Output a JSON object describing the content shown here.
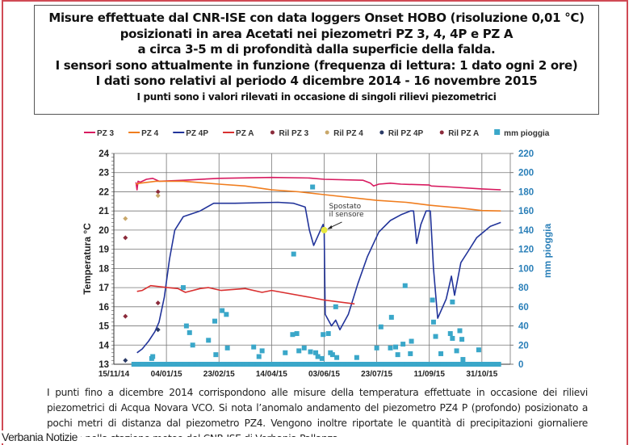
{
  "header": {
    "lines": [
      "Misure effettuate dal CNR-ISE con data loggers Onset HOBO (risoluzione 0,01 °C)",
      "posizionati in area Acetati nei piezometri PZ 3, 4, 4P e PZ A",
      "a circa 3-5 m di profondità dalla superficie della falda.",
      "I sensori sono attualmente in funzione (frequenza di lettura: 1 dato ogni 2 ore)",
      "I dati sono relativi al periodo 4 dicembre 2014 - 16 novembre 2015"
    ],
    "note": "I punti sono i valori rilevati in occasione di singoli rilievi piezometrici"
  },
  "footer": {
    "text": "I punti fino a dicembre 2014 corrispondono alle misure della temperatura effettuate in occasione dei rilievi piezometrici di Acqua Novara VCO. Si nota l’anomalo andamento del piezometro PZ4 P (profondo) posizionato a pochi metri di distanza dal piezometro PZ4. Vengono inoltre riportate le quantità di precipitazioni giornaliere rilevate nella stazione meteo del CNR-ISE di Verbania Pallanza"
  },
  "watermark": "Verbania Notizie",
  "chart_data": {
    "type": "line",
    "ylabel": "Temperatura °C",
    "y2label": "mm pioggia",
    "ylim": [
      13,
      24
    ],
    "y2lim": [
      0,
      220
    ],
    "yticks": [
      13,
      14,
      15,
      16,
      17,
      18,
      19,
      20,
      21,
      22,
      23,
      24
    ],
    "y2ticks": [
      0,
      20,
      40,
      60,
      80,
      100,
      120,
      140,
      160,
      180,
      200,
      220
    ],
    "xlim": [
      "2014-11-15",
      "2015-11-27"
    ],
    "xticks": [
      "15/11/14",
      "04/01/15",
      "23/02/15",
      "14/04/15",
      "03/06/15",
      "23/07/15",
      "11/09/15",
      "31/10/15"
    ],
    "grid": true,
    "legend_position": "top",
    "annotation": {
      "text": [
        "Spostato",
        "il sensore"
      ],
      "x": "2015-06-03",
      "y": 20.0,
      "color": "#e8e840"
    },
    "series": [
      {
        "name": "PZ 3",
        "kind": "line",
        "color": "#d81b60",
        "points": [
          [
            "2014-12-06",
            22.5
          ],
          [
            "2014-12-07",
            22.1
          ],
          [
            "2014-12-08",
            22.55
          ],
          [
            "2014-12-10",
            22.5
          ],
          [
            "2014-12-16",
            22.65
          ],
          [
            "2014-12-22",
            22.7
          ],
          [
            "2014-12-28",
            22.55
          ],
          [
            "2015-01-20",
            22.6
          ],
          [
            "2015-02-23",
            22.7
          ],
          [
            "2015-04-14",
            22.75
          ],
          [
            "2015-05-20",
            22.72
          ],
          [
            "2015-06-03",
            22.65
          ],
          [
            "2015-07-10",
            22.6
          ],
          [
            "2015-07-17",
            22.45
          ],
          [
            "2015-07-20",
            22.3
          ],
          [
            "2015-07-25",
            22.4
          ],
          [
            "2015-08-05",
            22.45
          ],
          [
            "2015-08-15",
            22.4
          ],
          [
            "2015-09-11",
            22.35
          ],
          [
            "2015-09-13",
            22.3
          ],
          [
            "2015-10-01",
            22.25
          ],
          [
            "2015-10-31",
            22.15
          ],
          [
            "2015-11-18",
            22.1
          ]
        ]
      },
      {
        "name": "PZ 4",
        "kind": "line",
        "color": "#f07d1e",
        "points": [
          [
            "2014-12-06",
            22.4
          ],
          [
            "2014-12-10",
            22.45
          ],
          [
            "2014-12-25",
            22.55
          ],
          [
            "2015-01-20",
            22.55
          ],
          [
            "2015-02-23",
            22.4
          ],
          [
            "2015-03-20",
            22.3
          ],
          [
            "2015-04-14",
            22.1
          ],
          [
            "2015-05-10",
            22.0
          ],
          [
            "2015-06-03",
            21.85
          ],
          [
            "2015-07-23",
            21.55
          ],
          [
            "2015-08-20",
            21.45
          ],
          [
            "2015-09-11",
            21.3
          ],
          [
            "2015-10-10",
            21.15
          ],
          [
            "2015-10-31",
            21.02
          ],
          [
            "2015-11-18",
            21.0
          ]
        ]
      },
      {
        "name": "PZ 4P",
        "kind": "line",
        "color": "#22349a",
        "points": [
          [
            "2014-12-07",
            13.6
          ],
          [
            "2014-12-12",
            13.8
          ],
          [
            "2014-12-18",
            14.2
          ],
          [
            "2014-12-24",
            14.7
          ],
          [
            "2014-12-28",
            15.2
          ],
          [
            "2015-01-02",
            16.5
          ],
          [
            "2015-01-07",
            18.5
          ],
          [
            "2015-01-12",
            20.0
          ],
          [
            "2015-01-20",
            20.7
          ],
          [
            "2015-02-05",
            21.0
          ],
          [
            "2015-02-18",
            21.4
          ],
          [
            "2015-03-10",
            21.4
          ],
          [
            "2015-04-20",
            21.45
          ],
          [
            "2015-05-05",
            21.4
          ],
          [
            "2015-05-16",
            21.2
          ],
          [
            "2015-05-20",
            20.0
          ],
          [
            "2015-05-24",
            19.2
          ],
          [
            "2015-06-02",
            20.3
          ],
          [
            "2015-06-03",
            20.0
          ],
          [
            "2015-06-04",
            15.6
          ],
          [
            "2015-06-10",
            15.0
          ],
          [
            "2015-06-14",
            15.3
          ],
          [
            "2015-06-18",
            14.8
          ],
          [
            "2015-06-26",
            15.6
          ],
          [
            "2015-07-05",
            17.2
          ],
          [
            "2015-07-14",
            18.6
          ],
          [
            "2015-07-25",
            19.9
          ],
          [
            "2015-08-05",
            20.5
          ],
          [
            "2015-08-15",
            20.8
          ],
          [
            "2015-08-24",
            21.0
          ],
          [
            "2015-08-27",
            21.0
          ],
          [
            "2015-08-30",
            19.3
          ],
          [
            "2015-09-03",
            20.3
          ],
          [
            "2015-09-08",
            21.0
          ],
          [
            "2015-09-12",
            21.0
          ],
          [
            "2015-09-15",
            18.0
          ],
          [
            "2015-09-19",
            15.4
          ],
          [
            "2015-09-27",
            16.4
          ],
          [
            "2015-10-02",
            17.6
          ],
          [
            "2015-10-05",
            16.6
          ],
          [
            "2015-10-11",
            18.3
          ],
          [
            "2015-10-18",
            18.9
          ],
          [
            "2015-10-26",
            19.6
          ],
          [
            "2015-11-08",
            20.2
          ],
          [
            "2015-11-18",
            20.4
          ]
        ]
      },
      {
        "name": "PZ A",
        "kind": "line",
        "color": "#d93030",
        "points": [
          [
            "2014-12-07",
            16.8
          ],
          [
            "2014-12-12",
            16.85
          ],
          [
            "2014-12-20",
            17.1
          ],
          [
            "2015-01-05",
            17.0
          ],
          [
            "2015-01-15",
            16.95
          ],
          [
            "2015-01-22",
            16.75
          ],
          [
            "2015-02-05",
            16.95
          ],
          [
            "2015-02-13",
            17.0
          ],
          [
            "2015-02-25",
            16.85
          ],
          [
            "2015-03-20",
            16.95
          ],
          [
            "2015-04-05",
            16.75
          ],
          [
            "2015-04-14",
            16.85
          ],
          [
            "2015-05-20",
            16.5
          ],
          [
            "2015-06-03",
            16.35
          ],
          [
            "2015-07-02",
            16.15
          ]
        ]
      },
      {
        "name": "Ril PZ 3",
        "kind": "point",
        "color": "#8b2b3b",
        "points": [
          [
            "2014-11-26",
            19.6
          ],
          [
            "2014-11-26",
            15.5
          ],
          [
            "2014-12-27",
            22.0
          ]
        ]
      },
      {
        "name": "Ril PZ 4",
        "kind": "point",
        "color": "#c9a86a",
        "points": [
          [
            "2014-11-26",
            20.6
          ],
          [
            "2014-12-27",
            21.8
          ]
        ]
      },
      {
        "name": "Ril PZ 4P",
        "kind": "point",
        "color": "#2a3a66",
        "points": [
          [
            "2014-11-26",
            13.2
          ],
          [
            "2014-12-27",
            14.8
          ]
        ]
      },
      {
        "name": "Ril PZ A",
        "kind": "point",
        "color": "#8b2b3b",
        "points": [
          [
            "2014-12-27",
            16.2
          ]
        ]
      },
      {
        "name": "mm pioggia",
        "kind": "square",
        "axis": "right",
        "color": "#3aa7c9",
        "range": [
          "2014-12-04",
          "2015-11-16"
        ],
        "points": [
          [
            "2014-12-21",
            6
          ],
          [
            "2014-12-22",
            8
          ],
          [
            "2015-01-20",
            80
          ],
          [
            "2015-01-23",
            40
          ],
          [
            "2015-01-26",
            33
          ],
          [
            "2015-01-29",
            20
          ],
          [
            "2015-02-13",
            25
          ],
          [
            "2015-02-19",
            45
          ],
          [
            "2015-02-20",
            10
          ],
          [
            "2015-02-26",
            56
          ],
          [
            "2015-03-02",
            52
          ],
          [
            "2015-03-03",
            17
          ],
          [
            "2015-03-28",
            18
          ],
          [
            "2015-04-02",
            8
          ],
          [
            "2015-04-05",
            14
          ],
          [
            "2015-04-27",
            12
          ],
          [
            "2015-05-04",
            31
          ],
          [
            "2015-05-05",
            115
          ],
          [
            "2015-05-08",
            32
          ],
          [
            "2015-05-10",
            14
          ],
          [
            "2015-05-15",
            17
          ],
          [
            "2015-05-21",
            13
          ],
          [
            "2015-05-23",
            185
          ],
          [
            "2015-05-26",
            12
          ],
          [
            "2015-05-28",
            8
          ],
          [
            "2015-06-01",
            6
          ],
          [
            "2015-06-02",
            31
          ],
          [
            "2015-06-07",
            32
          ],
          [
            "2015-06-09",
            12
          ],
          [
            "2015-06-11",
            10
          ],
          [
            "2015-06-14",
            60
          ],
          [
            "2015-06-15",
            7
          ],
          [
            "2015-07-04",
            7
          ],
          [
            "2015-07-23",
            17
          ],
          [
            "2015-07-27",
            39
          ],
          [
            "2015-08-05",
            17
          ],
          [
            "2015-08-06",
            49
          ],
          [
            "2015-08-10",
            18
          ],
          [
            "2015-08-12",
            10
          ],
          [
            "2015-08-17",
            21
          ],
          [
            "2015-08-19",
            82
          ],
          [
            "2015-08-24",
            11
          ],
          [
            "2015-08-25",
            24
          ],
          [
            "2015-09-14",
            67
          ],
          [
            "2015-09-15",
            44
          ],
          [
            "2015-09-17",
            29
          ],
          [
            "2015-09-22",
            11
          ],
          [
            "2015-10-01",
            32
          ],
          [
            "2015-10-03",
            27
          ],
          [
            "2015-10-03",
            65
          ],
          [
            "2015-10-07",
            14
          ],
          [
            "2015-10-10",
            35
          ],
          [
            "2015-10-12",
            26
          ],
          [
            "2015-10-13",
            5
          ],
          [
            "2015-10-28",
            15
          ]
        ]
      }
    ]
  }
}
